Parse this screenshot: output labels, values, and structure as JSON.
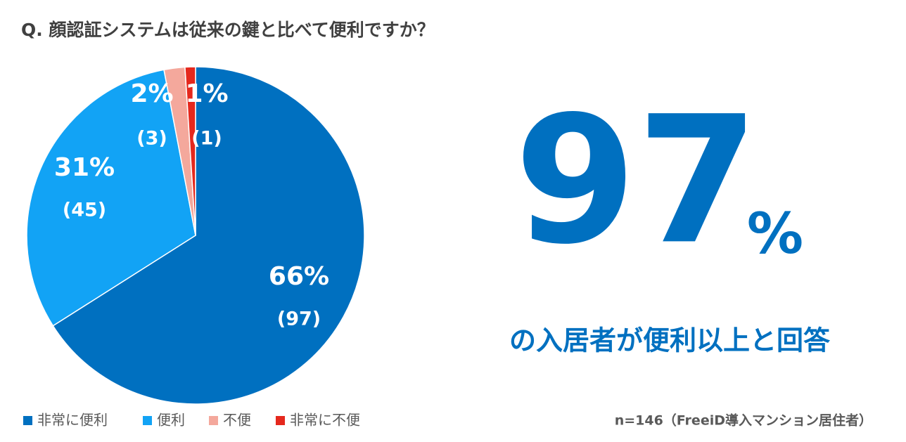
{
  "chart_data": {
    "type": "pie",
    "title": "Q. 顔認証システムは従来の鍵と比べて便利ですか？",
    "categories": [
      "非常に便利",
      "便利",
      "不便",
      "非常に不便"
    ],
    "values": [
      66,
      31,
      2,
      1
    ],
    "value_labels": [
      "66%",
      "31%",
      "2%",
      "1%"
    ],
    "counts": [
      97,
      45,
      3,
      1
    ],
    "count_labels": [
      "(97)",
      "(45)",
      "(3)",
      "(1)"
    ],
    "colors": [
      "#0070c0",
      "#12a3f5",
      "#f4a89c",
      "#e5281d"
    ],
    "highlight": {
      "value": 97,
      "unit": "%",
      "text": "の入居者が便利以上と回答"
    },
    "note": "n=146（FreeiD導入マンション居住者）"
  }
}
